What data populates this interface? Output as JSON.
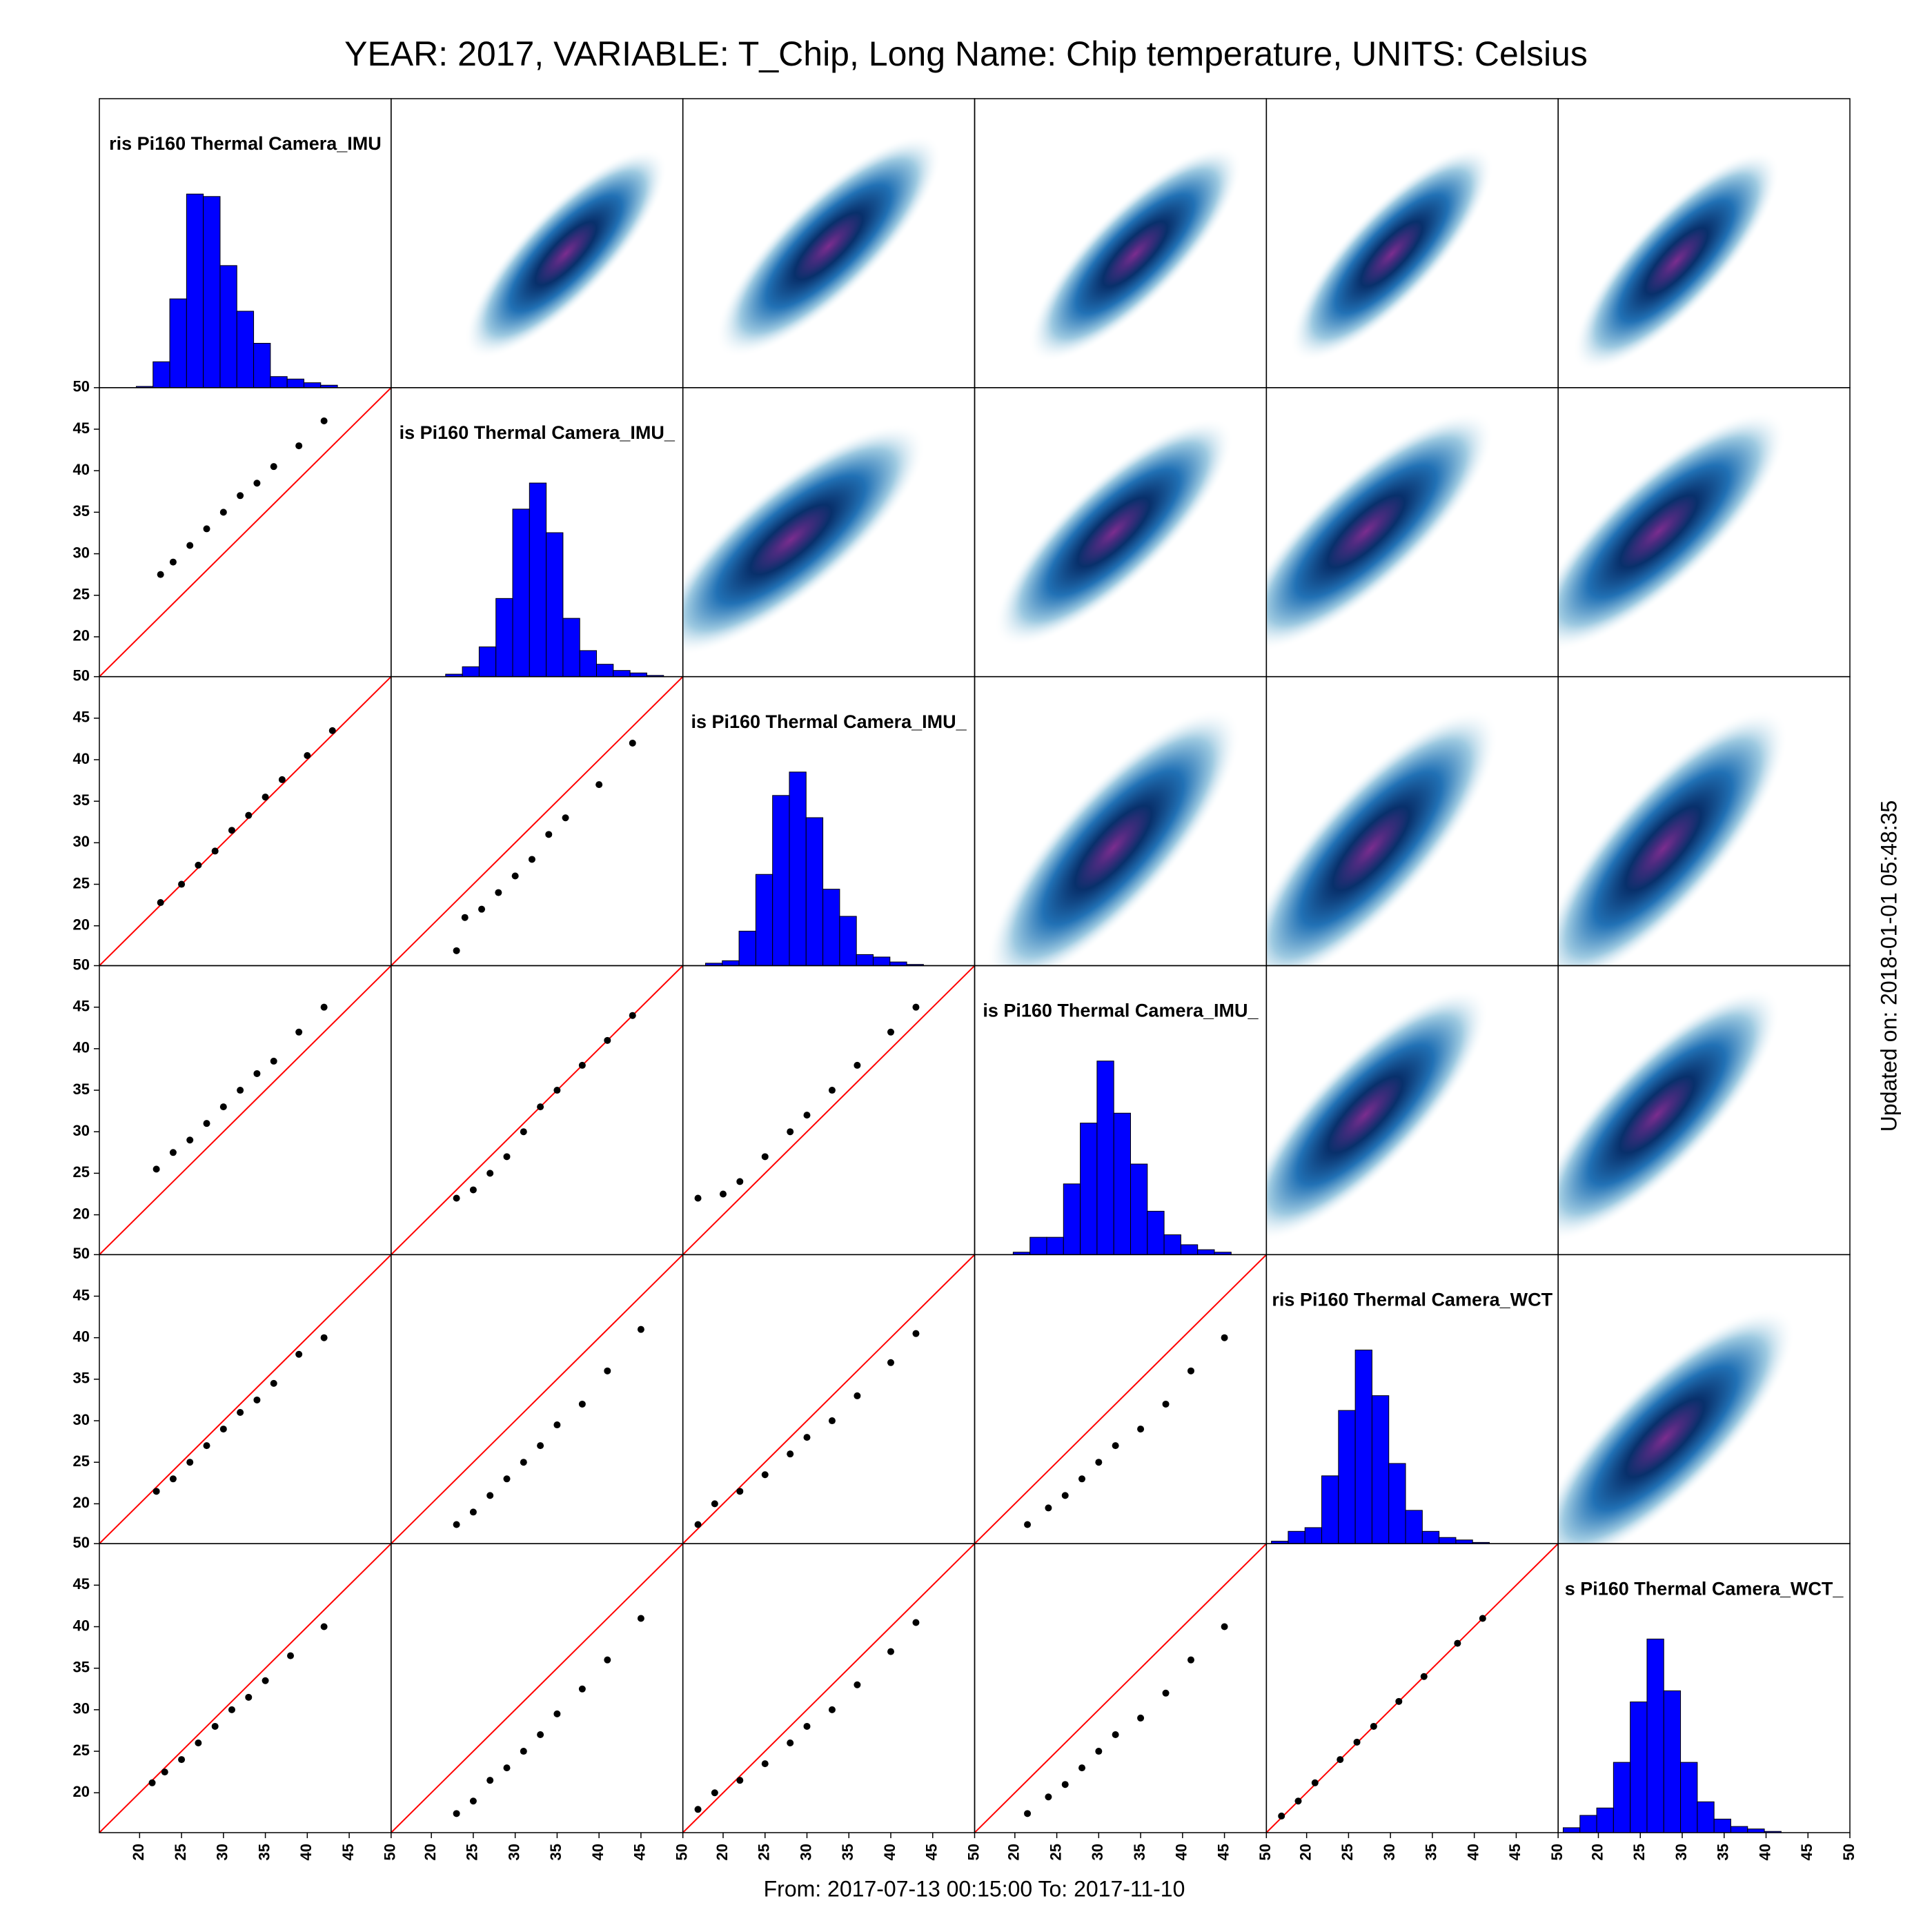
{
  "chart_data": {
    "type": "scatter-matrix",
    "title": "YEAR: 2017, VARIABLE: T_Chip, Long Name: Chip temperature, UNITS: Celsius",
    "footer": "From: 2017-07-13 00:15:00 To: 2017-11-10",
    "side_note": "Updated on: 2018-01-01 05:48:35",
    "variables": [
      "ris Pi160 Thermal Camera_IMU",
      "is Pi160 Thermal Camera_IMU_",
      "is Pi160 Thermal Camera_IMU_",
      "is Pi160 Thermal Camera_IMU_",
      "ris Pi160 Thermal Camera_WCT",
      "s Pi160 Thermal Camera_WCT_"
    ],
    "xlim": [
      15.2,
      50
    ],
    "ylim": [
      15.2,
      50
    ],
    "xticks": [
      20,
      25,
      30,
      35,
      40,
      45,
      50
    ],
    "yticks": [
      20,
      25,
      30,
      35,
      40,
      45,
      50
    ],
    "histogram_color": "#0000ff",
    "point_color": "#000000",
    "line_color": "#ff0000",
    "histograms": [
      {
        "bins": [
          19.6,
          21.6,
          23.6,
          25.6,
          27.6,
          29.6,
          31.6,
          33.6,
          35.6,
          37.6,
          39.6,
          41.6,
          43.6
        ],
        "counts": [
          1,
          21,
          72,
          157,
          155,
          99,
          62,
          36,
          9,
          7,
          4,
          2
        ]
      },
      {
        "bins": [
          21.7,
          23.7,
          25.7,
          27.7,
          29.7,
          31.7,
          33.7,
          35.7,
          37.7,
          39.7,
          41.7,
          43.7,
          45.7,
          47.7
        ],
        "counts": [
          2,
          8,
          24,
          63,
          135,
          156,
          116,
          47,
          21,
          10,
          5,
          3,
          1
        ]
      },
      {
        "bins": [
          17.9,
          19.9,
          21.9,
          23.9,
          25.9,
          27.9,
          29.9,
          31.9,
          33.9,
          35.9,
          37.9,
          39.9,
          41.9,
          43.9
        ],
        "counts": [
          2,
          4,
          28,
          74,
          138,
          157,
          120,
          62,
          40,
          9,
          7,
          3,
          1
        ]
      },
      {
        "bins": [
          19.8,
          21.8,
          23.8,
          25.8,
          27.8,
          29.8,
          31.8,
          33.8,
          35.8,
          37.8,
          39.8,
          41.8,
          43.8,
          45.8
        ],
        "counts": [
          2,
          14,
          14,
          57,
          106,
          156,
          114,
          73,
          35,
          16,
          8,
          4,
          2
        ]
      },
      {
        "bins": [
          15.8,
          17.8,
          19.8,
          21.8,
          23.8,
          25.8,
          27.8,
          29.8,
          31.8,
          33.8,
          35.8,
          37.8,
          39.8,
          41.8
        ],
        "counts": [
          2,
          10,
          13,
          55,
          108,
          157,
          120,
          65,
          27,
          10,
          5,
          3,
          1
        ]
      },
      {
        "bins": [
          15.8,
          17.8,
          19.8,
          21.8,
          23.8,
          25.8,
          27.8,
          29.8,
          31.8,
          33.8,
          35.8,
          37.8,
          39.8,
          41.8
        ],
        "counts": [
          4,
          14,
          20,
          57,
          106,
          157,
          115,
          57,
          25,
          11,
          5,
          3,
          1
        ]
      }
    ],
    "scatter": [
      [
        {
          "x": [
            22.5,
            24,
            26,
            28,
            30,
            32,
            34,
            36,
            39,
            42
          ],
          "y": [
            27.5,
            29,
            31,
            33,
            35,
            37,
            38.5,
            40.5,
            43,
            46
          ]
        }
      ],
      [
        {
          "x": [
            22.5,
            25,
            27,
            29,
            31,
            33,
            35,
            37,
            40,
            43
          ],
          "y": [
            22.8,
            25,
            27.3,
            29,
            31.5,
            33.3,
            35.5,
            37.6,
            40.5,
            43.5
          ]
        },
        {
          "x": [
            23,
            24,
            26,
            28,
            30,
            32,
            34,
            36,
            40,
            44
          ],
          "y": [
            17,
            21,
            22,
            24,
            26,
            28,
            31,
            33,
            37,
            42
          ]
        }
      ],
      [
        {
          "x": [
            22,
            24,
            26,
            28,
            30,
            32,
            34,
            36,
            39,
            42
          ],
          "y": [
            25.5,
            27.5,
            29,
            31,
            33,
            35,
            37,
            38.5,
            42,
            45
          ]
        },
        {
          "x": [
            23,
            25,
            27,
            29,
            31,
            33,
            35,
            38,
            41,
            44
          ],
          "y": [
            22,
            23,
            25,
            27,
            30,
            33,
            35,
            38,
            41,
            44
          ]
        },
        {
          "x": [
            17,
            20,
            22,
            25,
            28,
            30,
            33,
            36,
            40,
            43
          ],
          "y": [
            22,
            22.5,
            24,
            27,
            30,
            32,
            35,
            38,
            42,
            45
          ]
        }
      ],
      [
        {
          "x": [
            22,
            24,
            26,
            28,
            30,
            32,
            34,
            36,
            39,
            42
          ],
          "y": [
            21.5,
            23,
            25,
            27,
            29,
            31,
            32.5,
            34.5,
            38,
            40
          ]
        },
        {
          "x": [
            23,
            25,
            27,
            29,
            31,
            33,
            35,
            38,
            41,
            45
          ],
          "y": [
            17.5,
            19,
            21,
            23,
            25,
            27,
            29.5,
            32,
            36,
            41
          ]
        },
        {
          "x": [
            17,
            19,
            22,
            25,
            28,
            30,
            33,
            36,
            40,
            43
          ],
          "y": [
            17.5,
            20,
            21.5,
            23.5,
            26,
            28,
            30,
            33,
            37,
            40.5
          ]
        },
        {
          "x": [
            21.5,
            24,
            26,
            28,
            30,
            32,
            35,
            38,
            41,
            45
          ],
          "y": [
            17.5,
            19.5,
            21,
            23,
            25,
            27,
            29,
            32,
            36,
            40
          ]
        }
      ],
      [
        {
          "x": [
            21.5,
            23,
            25,
            27,
            29,
            31,
            33,
            35,
            38,
            42
          ],
          "y": [
            21.2,
            22.5,
            24,
            26,
            28,
            30,
            31.5,
            33.5,
            36.5,
            40
          ]
        },
        {
          "x": [
            23,
            25,
            27,
            29,
            31,
            33,
            35,
            38,
            41,
            45
          ],
          "y": [
            17.5,
            19,
            21.5,
            23,
            25,
            27,
            29.5,
            32.5,
            36,
            41
          ]
        },
        {
          "x": [
            17,
            19,
            22,
            25,
            28,
            30,
            33,
            36,
            40,
            43
          ],
          "y": [
            18,
            20,
            21.5,
            23.5,
            26,
            28,
            30,
            33,
            37,
            40.5
          ]
        },
        {
          "x": [
            21.5,
            24,
            26,
            28,
            30,
            32,
            35,
            38,
            41,
            45
          ],
          "y": [
            17.5,
            19.5,
            21,
            23,
            25,
            27,
            29,
            32,
            36,
            40
          ]
        },
        {
          "x": [
            17,
            19,
            21,
            24,
            26,
            28,
            31,
            34,
            38,
            41
          ],
          "y": [
            17.2,
            19,
            21.2,
            24,
            26.1,
            28,
            31,
            34,
            38,
            41
          ]
        }
      ]
    ]
  }
}
